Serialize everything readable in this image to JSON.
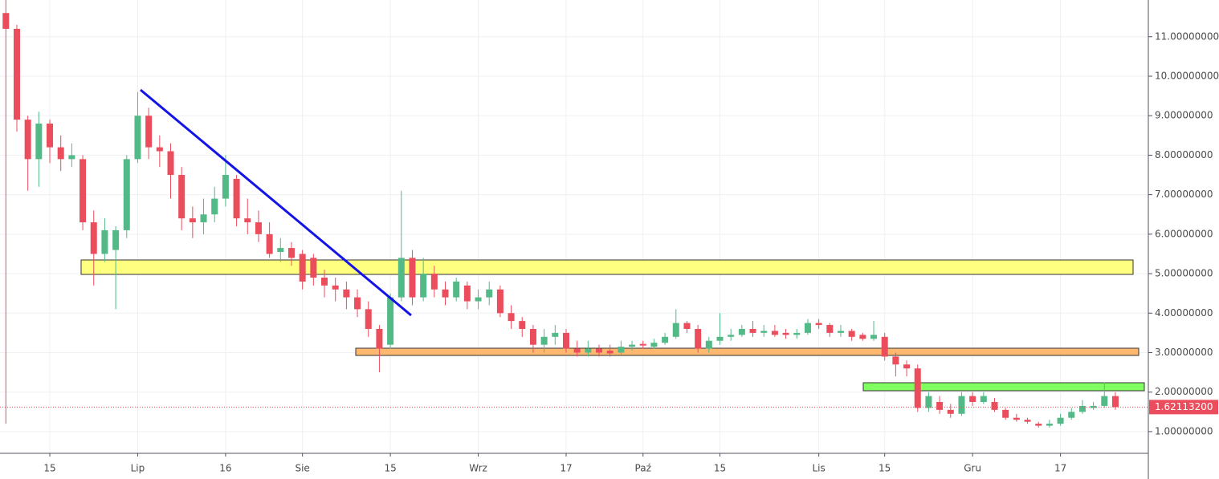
{
  "chart_data": {
    "type": "candlestick",
    "categories": [
      null,
      null,
      null,
      null,
      "15",
      null,
      null,
      null,
      null,
      null,
      null,
      null,
      "Lip",
      null,
      null,
      null,
      null,
      null,
      null,
      null,
      "16",
      null,
      null,
      null,
      null,
      null,
      null,
      "Sie",
      null,
      null,
      null,
      null,
      null,
      null,
      null,
      "15",
      null,
      null,
      null,
      null,
      null,
      null,
      null,
      "Wrz",
      null,
      null,
      null,
      null,
      null,
      null,
      null,
      "17",
      null,
      null,
      null,
      null,
      null,
      null,
      "Paź",
      null,
      null,
      null,
      null,
      null,
      null,
      "15",
      null,
      null,
      null,
      null,
      null,
      null,
      null,
      null,
      "Lis",
      null,
      null,
      null,
      null,
      null,
      "15",
      null,
      null,
      null,
      null,
      null,
      null,
      null,
      "Gru",
      null,
      null,
      null,
      null,
      null,
      null,
      null,
      "17",
      null,
      null,
      null,
      null,
      null
    ],
    "open": [
      11.6,
      11.2,
      8.9,
      7.9,
      8.8,
      8.2,
      7.9,
      7.9,
      6.3,
      5.5,
      5.6,
      6.1,
      7.9,
      9.0,
      8.2,
      8.1,
      7.5,
      6.4,
      6.3,
      6.5,
      6.9,
      7.4,
      6.4,
      6.3,
      6.0,
      5.55,
      5.65,
      5.5,
      5.4,
      4.9,
      4.7,
      4.6,
      4.4,
      4.1,
      3.6,
      3.2,
      4.4,
      5.4,
      4.4,
      5.0,
      4.6,
      4.4,
      4.7,
      4.3,
      4.4,
      4.6,
      4.0,
      3.8,
      3.6,
      3.2,
      3.4,
      3.5,
      3.1,
      3.0,
      3.1,
      3.05,
      3.0,
      3.15,
      3.22,
      3.15,
      3.25,
      3.4,
      3.75,
      3.6,
      3.1,
      3.3,
      3.4,
      3.45,
      3.6,
      3.5,
      3.55,
      3.5,
      3.45,
      3.5,
      3.75,
      3.7,
      3.5,
      3.55,
      3.45,
      3.35,
      3.4,
      2.9,
      2.7,
      2.6,
      1.6,
      1.75,
      1.55,
      1.45,
      1.9,
      1.75,
      1.75,
      1.55,
      1.35,
      1.3,
      1.2,
      1.15,
      1.2,
      1.35,
      1.5,
      1.6,
      1.65,
      1.9
    ],
    "high": [
      12.0,
      11.3,
      9.0,
      9.1,
      8.9,
      8.5,
      8.3,
      8.0,
      6.6,
      6.4,
      6.2,
      8.0,
      9.6,
      9.2,
      8.5,
      8.3,
      7.7,
      6.7,
      6.9,
      7.2,
      8.0,
      7.5,
      6.9,
      6.6,
      6.3,
      5.9,
      5.8,
      5.6,
      5.5,
      5.1,
      4.9,
      4.8,
      4.6,
      4.3,
      3.7,
      4.5,
      7.1,
      5.6,
      5.4,
      5.2,
      4.8,
      4.9,
      4.8,
      4.6,
      4.8,
      4.7,
      4.2,
      3.9,
      3.7,
      3.6,
      3.7,
      3.6,
      3.3,
      3.3,
      3.2,
      3.2,
      3.3,
      3.3,
      3.3,
      3.35,
      3.5,
      4.1,
      3.8,
      3.7,
      3.4,
      4.0,
      3.6,
      3.7,
      3.8,
      3.7,
      3.7,
      3.6,
      3.6,
      3.85,
      3.85,
      3.75,
      3.7,
      3.6,
      3.5,
      3.8,
      3.5,
      3.0,
      2.8,
      2.7,
      2.0,
      1.9,
      1.7,
      2.0,
      2.0,
      2.0,
      1.85,
      1.6,
      1.45,
      1.35,
      1.25,
      1.3,
      1.45,
      1.6,
      1.8,
      1.75,
      2.25,
      2.0
    ],
    "low": [
      1.2,
      8.6,
      7.1,
      7.2,
      7.8,
      7.6,
      7.7,
      6.1,
      4.7,
      5.3,
      4.1,
      5.9,
      7.8,
      7.9,
      7.7,
      6.9,
      6.1,
      5.9,
      6.0,
      6.3,
      6.7,
      6.2,
      6.0,
      5.8,
      5.4,
      5.3,
      5.2,
      4.6,
      4.7,
      4.4,
      4.3,
      4.1,
      3.9,
      3.4,
      2.5,
      3.1,
      4.3,
      4.2,
      4.3,
      4.4,
      4.2,
      4.3,
      4.1,
      4.1,
      4.2,
      3.9,
      3.6,
      3.4,
      3.0,
      3.0,
      3.2,
      3.0,
      2.9,
      2.9,
      2.9,
      2.9,
      2.95,
      3.05,
      3.1,
      3.1,
      3.2,
      3.35,
      3.5,
      3.0,
      3.0,
      3.2,
      3.3,
      3.4,
      3.4,
      3.4,
      3.4,
      3.35,
      3.35,
      3.45,
      3.6,
      3.4,
      3.4,
      3.3,
      3.3,
      3.3,
      2.8,
      2.4,
      2.4,
      1.5,
      1.5,
      1.45,
      1.35,
      1.4,
      1.65,
      1.7,
      1.5,
      1.3,
      1.25,
      1.2,
      1.1,
      1.1,
      1.15,
      1.3,
      1.45,
      1.55,
      1.6,
      1.55
    ],
    "close": [
      11.2,
      8.9,
      7.9,
      8.8,
      8.2,
      7.9,
      8.0,
      6.3,
      5.5,
      6.1,
      6.1,
      7.9,
      9.0,
      8.2,
      8.1,
      7.5,
      6.4,
      6.3,
      6.5,
      6.9,
      7.5,
      6.4,
      6.3,
      6.0,
      5.5,
      5.65,
      5.4,
      4.8,
      4.9,
      4.7,
      4.6,
      4.4,
      4.1,
      3.6,
      3.1,
      4.4,
      5.4,
      4.4,
      5.0,
      4.6,
      4.4,
      4.8,
      4.3,
      4.4,
      4.6,
      4.0,
      3.8,
      3.6,
      3.2,
      3.4,
      3.5,
      3.1,
      3.0,
      3.1,
      3.0,
      2.98,
      3.15,
      3.2,
      3.18,
      3.25,
      3.4,
      3.75,
      3.6,
      3.1,
      3.3,
      3.4,
      3.45,
      3.6,
      3.5,
      3.55,
      3.45,
      3.45,
      3.5,
      3.75,
      3.7,
      3.5,
      3.55,
      3.4,
      3.35,
      3.45,
      2.9,
      2.7,
      2.6,
      1.6,
      1.9,
      1.55,
      1.45,
      1.9,
      1.75,
      1.9,
      1.55,
      1.35,
      1.3,
      1.25,
      1.15,
      1.2,
      1.35,
      1.5,
      1.65,
      1.65,
      1.9,
      1.621132
    ],
    "up_color": "#53b987",
    "down_color": "#eb4d5c",
    "last_price": {
      "value": 1.621132,
      "label": "1.62113200"
    },
    "ylim": [
      0.45,
      11.93
    ],
    "yticks": [
      {
        "value": 1,
        "label": "1.00000000"
      },
      {
        "value": 2,
        "label": "2.00000000"
      },
      {
        "value": 3,
        "label": "3.00000000"
      },
      {
        "value": 4,
        "label": "4.00000000"
      },
      {
        "value": 5,
        "label": "5.00000000"
      },
      {
        "value": 6,
        "label": "6.00000000"
      },
      {
        "value": 7,
        "label": "7.00000000"
      },
      {
        "value": 8,
        "label": "8.00000000"
      },
      {
        "value": 9,
        "label": "9.00000000"
      },
      {
        "value": 10,
        "label": "10.00000000"
      },
      {
        "value": 11,
        "label": "11.00000000"
      }
    ],
    "grid": true
  }
}
